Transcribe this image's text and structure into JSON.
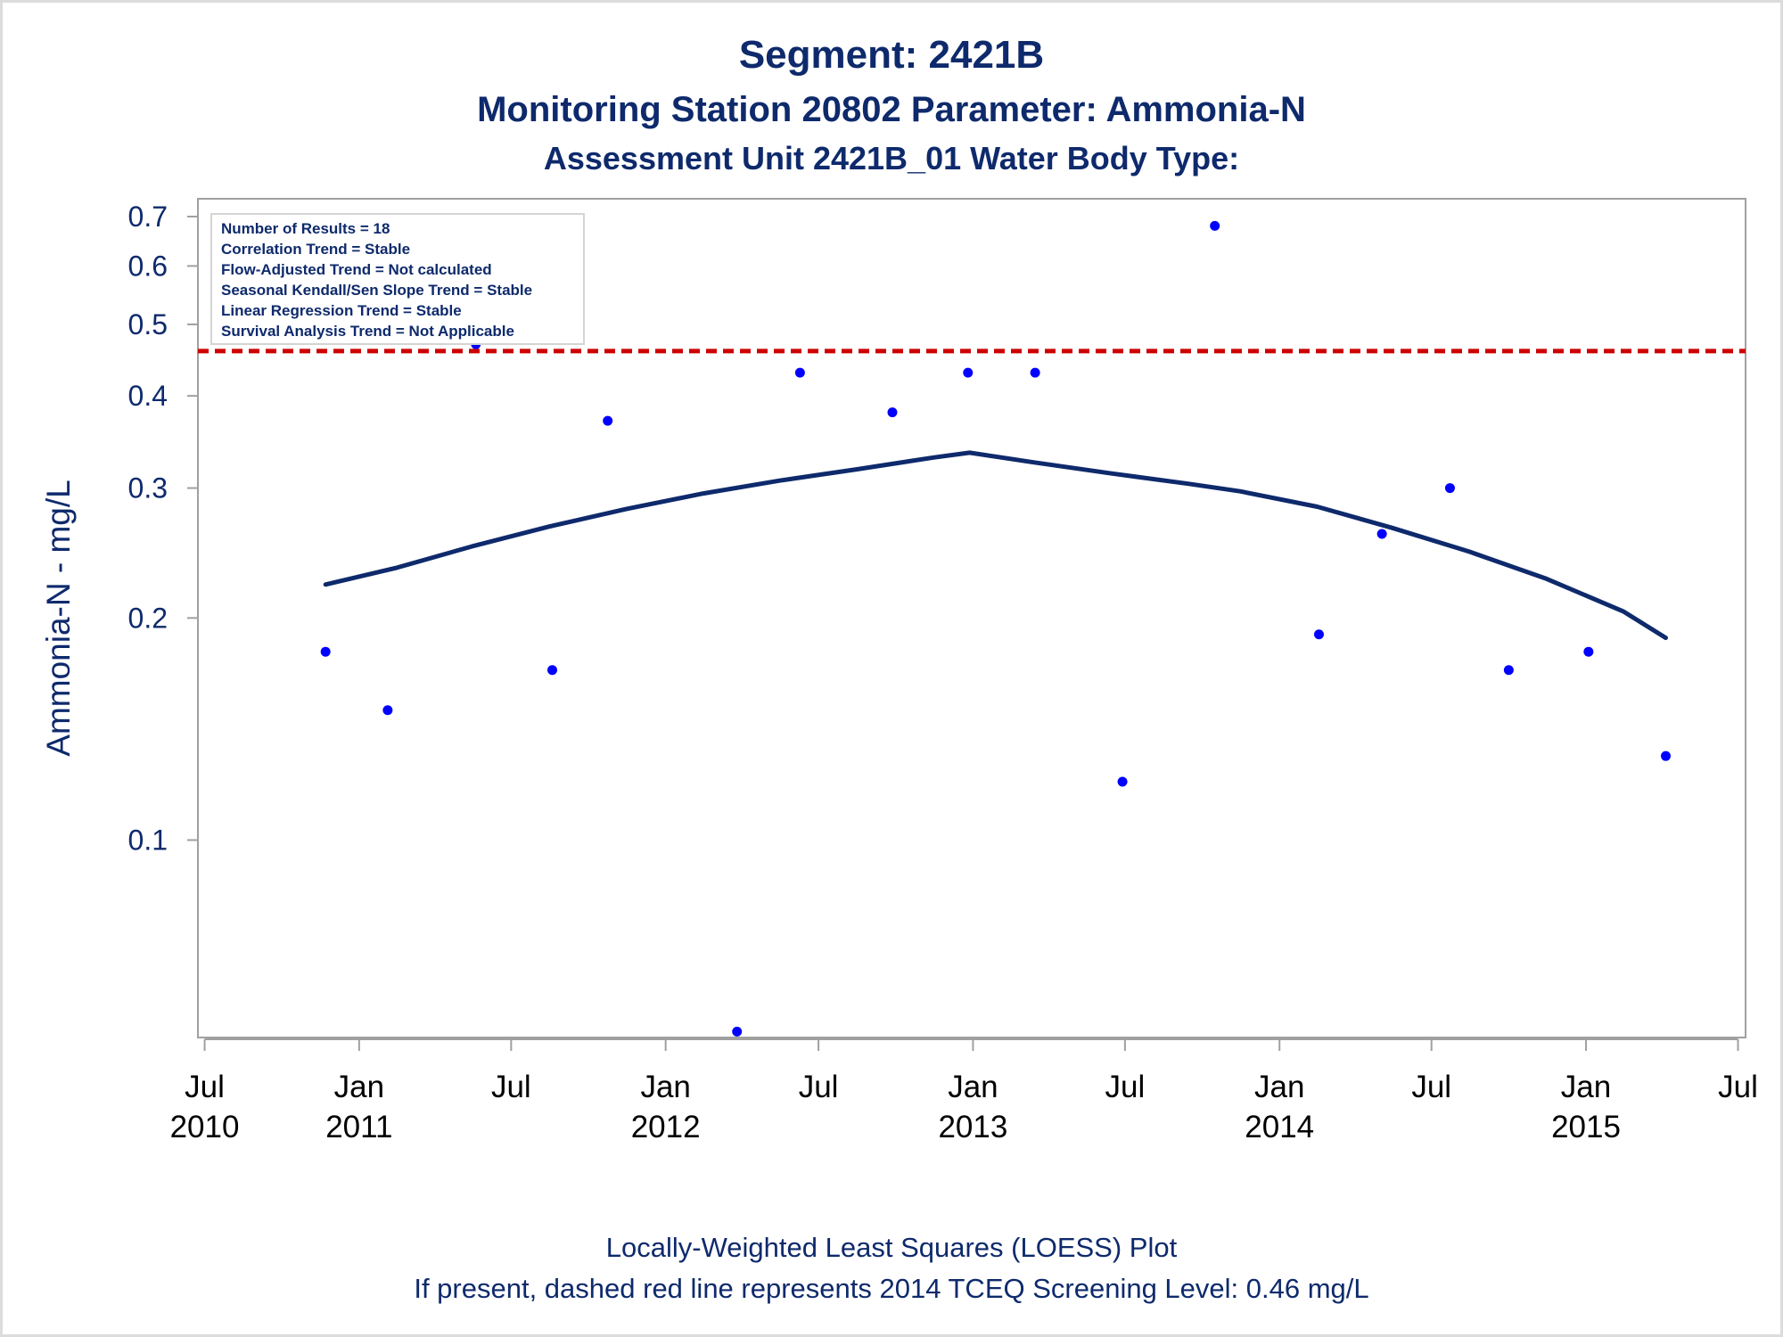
{
  "chart_data": {
    "type": "scatter",
    "title": "Segment: 2421B",
    "subtitle_1": "Monitoring Station 20802 Parameter: Ammonia-N",
    "subtitle_2": "Assessment Unit 2421B_01   Water Body Type:",
    "ylabel": "Ammonia-N - mg/L",
    "xlabel": "",
    "y_scale": "log",
    "ylim": [
      0.054,
      0.74
    ],
    "xlim": [
      "2010-06-23",
      "2015-07-10"
    ],
    "y_ticks": [
      "0.1",
      "0.2",
      "0.3",
      "0.4",
      "0.5",
      "0.6",
      "0.7"
    ],
    "x_ticks": [
      {
        "month": "Jul",
        "year": "2010",
        "date": "2010-07-01"
      },
      {
        "month": "Jan",
        "year": "2011",
        "date": "2011-01-01"
      },
      {
        "month": "Jul",
        "year": "",
        "date": "2011-07-01"
      },
      {
        "month": "Jan",
        "year": "2012",
        "date": "2012-01-01"
      },
      {
        "month": "Jul",
        "year": "",
        "date": "2012-07-01"
      },
      {
        "month": "Jan",
        "year": "2013",
        "date": "2013-01-01"
      },
      {
        "month": "Jul",
        "year": "",
        "date": "2013-07-01"
      },
      {
        "month": "Jan",
        "year": "2014",
        "date": "2014-01-01"
      },
      {
        "month": "Jul",
        "year": "",
        "date": "2014-07-01"
      },
      {
        "month": "Jan",
        "year": "2015",
        "date": "2015-01-01"
      },
      {
        "month": "Jul",
        "year": "",
        "date": "2015-07-01"
      }
    ],
    "series": [
      {
        "points": [
          {
            "x": "2010-11-22",
            "y": 0.18
          },
          {
            "x": "2011-02-04",
            "y": 0.15
          },
          {
            "x": "2011-05-20",
            "y": 0.47
          },
          {
            "x": "2011-08-19",
            "y": 0.17
          },
          {
            "x": "2011-10-24",
            "y": 0.37
          },
          {
            "x": "2012-03-26",
            "y": 0.055
          },
          {
            "x": "2012-06-09",
            "y": 0.43
          },
          {
            "x": "2012-09-27",
            "y": 0.38
          },
          {
            "x": "2012-12-26",
            "y": 0.43
          },
          {
            "x": "2013-03-16",
            "y": 0.43
          },
          {
            "x": "2013-06-28",
            "y": 0.12
          },
          {
            "x": "2013-10-16",
            "y": 0.68
          },
          {
            "x": "2014-02-17",
            "y": 0.19
          },
          {
            "x": "2014-05-03",
            "y": 0.26
          },
          {
            "x": "2014-07-23",
            "y": 0.3
          },
          {
            "x": "2014-10-01",
            "y": 0.17
          },
          {
            "x": "2015-01-04",
            "y": 0.18
          },
          {
            "x": "2015-04-06",
            "y": 0.13
          }
        ],
        "color": "#0000ff"
      },
      {
        "type": "line",
        "points": [
          {
            "x": "2010-11-22",
            "y": 0.222
          },
          {
            "x": "2011-02-15",
            "y": 0.234
          },
          {
            "x": "2011-05-15",
            "y": 0.25
          },
          {
            "x": "2011-08-15",
            "y": 0.266
          },
          {
            "x": "2011-11-15",
            "y": 0.281
          },
          {
            "x": "2012-02-15",
            "y": 0.295
          },
          {
            "x": "2012-05-15",
            "y": 0.307
          },
          {
            "x": "2012-08-15",
            "y": 0.318
          },
          {
            "x": "2012-11-15",
            "y": 0.33
          },
          {
            "x": "2012-12-28",
            "y": 0.335
          },
          {
            "x": "2013-03-15",
            "y": 0.325
          },
          {
            "x": "2013-06-15",
            "y": 0.314
          },
          {
            "x": "2013-09-15",
            "y": 0.304
          },
          {
            "x": "2013-11-15",
            "y": 0.297
          },
          {
            "x": "2014-02-15",
            "y": 0.283
          },
          {
            "x": "2014-05-15",
            "y": 0.265
          },
          {
            "x": "2014-08-15",
            "y": 0.246
          },
          {
            "x": "2014-11-15",
            "y": 0.226
          },
          {
            "x": "2015-02-15",
            "y": 0.204
          },
          {
            "x": "2015-04-06",
            "y": 0.188
          }
        ],
        "color": "#0e2a6c"
      }
    ],
    "reference_line": {
      "y": 0.46,
      "color": "#cc0000",
      "style": "dashed"
    },
    "stats_box": [
      "Number of Results = 18",
      "Correlation Trend = Stable",
      "Flow-Adjusted Trend = Not calculated",
      "Seasonal Kendall/Sen Slope Trend = Stable",
      "Linear Regression Trend = Stable",
      "Survival Analysis Trend = Not Applicable"
    ],
    "footnotes": [
      "Locally-Weighted Least Squares (LOESS) Plot",
      "If present, dashed red line represents 2014 TCEQ Screening Level: 0.46 mg/L"
    ],
    "grid": false,
    "legend": "none",
    "colors": {
      "text": "#0e2a6c",
      "frame": "#a0a0a0",
      "points": "#0000ff",
      "loess": "#0e2a6c",
      "reference": "#cc0000"
    }
  }
}
